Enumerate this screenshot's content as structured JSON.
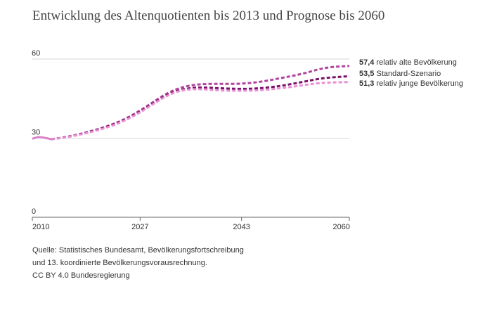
{
  "chart_data": {
    "type": "line",
    "title": "Entwicklung des Altenquotienten bis 2013 und Prognose bis 2060",
    "xlabel": "",
    "ylabel": "",
    "xlim": [
      2010,
      2060
    ],
    "ylim": [
      0,
      60
    ],
    "x_ticks": [
      2010,
      2027,
      2043,
      2060
    ],
    "y_ticks": [
      0,
      30,
      60
    ],
    "grid": true,
    "series": [
      {
        "name": "relativ alte Bevölkerung",
        "end_label": "57,4",
        "color": "#b0449e",
        "dashed": true,
        "points": [
          [
            2013,
            29.6
          ],
          [
            2015,
            30.3
          ],
          [
            2017,
            31.3
          ],
          [
            2019,
            32.5
          ],
          [
            2021,
            33.9
          ],
          [
            2023,
            35.6
          ],
          [
            2025,
            37.8
          ],
          [
            2027,
            40.5
          ],
          [
            2029,
            43.6
          ],
          [
            2031,
            46.6
          ],
          [
            2033,
            48.8
          ],
          [
            2035,
            50.0
          ],
          [
            2037,
            50.5
          ],
          [
            2039,
            50.6
          ],
          [
            2041,
            50.6
          ],
          [
            2043,
            50.7
          ],
          [
            2045,
            51.1
          ],
          [
            2047,
            51.8
          ],
          [
            2049,
            52.7
          ],
          [
            2051,
            53.6
          ],
          [
            2053,
            54.7
          ],
          [
            2055,
            56.0
          ],
          [
            2057,
            56.9
          ],
          [
            2060,
            57.4
          ]
        ]
      },
      {
        "name": "Standard-Szenario",
        "end_label": "53,5",
        "color": "#7b1068",
        "dashed": true,
        "points": [
          [
            2013,
            29.6
          ],
          [
            2015,
            30.3
          ],
          [
            2017,
            31.2
          ],
          [
            2019,
            32.4
          ],
          [
            2021,
            33.7
          ],
          [
            2023,
            35.4
          ],
          [
            2025,
            37.5
          ],
          [
            2027,
            40.1
          ],
          [
            2029,
            43.1
          ],
          [
            2031,
            46.0
          ],
          [
            2033,
            48.0
          ],
          [
            2035,
            49.0
          ],
          [
            2037,
            49.2
          ],
          [
            2039,
            49.0
          ],
          [
            2041,
            48.8
          ],
          [
            2043,
            48.7
          ],
          [
            2045,
            48.8
          ],
          [
            2047,
            49.2
          ],
          [
            2049,
            49.8
          ],
          [
            2051,
            50.6
          ],
          [
            2053,
            51.5
          ],
          [
            2055,
            52.4
          ],
          [
            2057,
            53.0
          ],
          [
            2060,
            53.5
          ]
        ]
      },
      {
        "name": "relativ junge Bevölkerung",
        "end_label": "51,3",
        "color": "#e98fd3",
        "dashed": true,
        "points": [
          [
            2013,
            29.6
          ],
          [
            2015,
            30.2
          ],
          [
            2017,
            31.1
          ],
          [
            2019,
            32.2
          ],
          [
            2021,
            33.5
          ],
          [
            2023,
            35.1
          ],
          [
            2025,
            37.2
          ],
          [
            2027,
            39.8
          ],
          [
            2029,
            42.8
          ],
          [
            2031,
            45.7
          ],
          [
            2033,
            47.7
          ],
          [
            2035,
            48.5
          ],
          [
            2037,
            48.5
          ],
          [
            2039,
            48.2
          ],
          [
            2041,
            48.0
          ],
          [
            2043,
            48.0
          ],
          [
            2045,
            48.1
          ],
          [
            2047,
            48.4
          ],
          [
            2049,
            48.9
          ],
          [
            2051,
            49.5
          ],
          [
            2053,
            50.2
          ],
          [
            2055,
            50.8
          ],
          [
            2057,
            51.1
          ],
          [
            2060,
            51.3
          ]
        ]
      },
      {
        "name": "",
        "color": "#d982c8",
        "dashed": false,
        "points": [
          [
            2010,
            29.8
          ],
          [
            2011,
            30.4
          ],
          [
            2012,
            30.1
          ],
          [
            2013,
            29.6
          ]
        ]
      }
    ]
  },
  "source": {
    "line1": "Quelle: Statistisches Bundesamt, Bevölkerungsfortschreibung",
    "line2": "und 13. koordinierte Bevölkerungsvorausrechnung.",
    "line3": "CC BY 4.0 Bundesregierung"
  }
}
